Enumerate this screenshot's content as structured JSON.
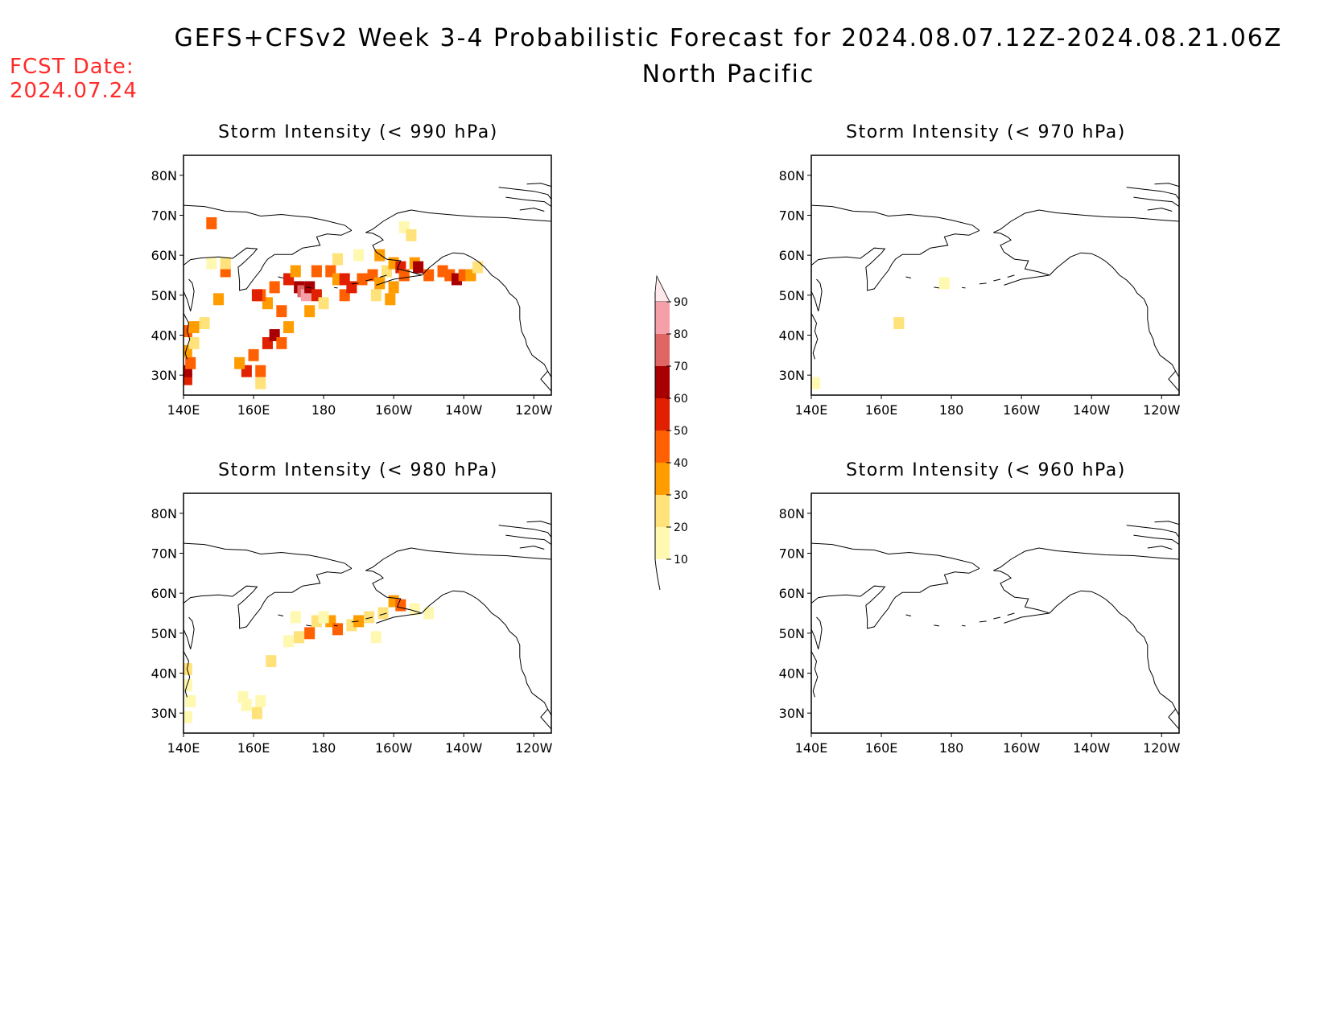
{
  "header": {
    "title": "GEFS+CFSv2 Week 3-4 Probabilistic Forecast for 2024.08.07.12Z-2024.08.21.06Z",
    "region": "North Pacific",
    "fcst_label": "FCST Date:",
    "fcst_date": "2024.07.24"
  },
  "axes": {
    "lat_labels": [
      "30N",
      "40N",
      "50N",
      "60N",
      "70N",
      "80N"
    ],
    "lon_labels": [
      "140E",
      "160E",
      "180",
      "160W",
      "140W",
      "120W"
    ]
  },
  "panels": [
    {
      "id": "p990",
      "title": "Storm Intensity (< 990 hPa)"
    },
    {
      "id": "p970",
      "title": "Storm Intensity (< 970 hPa)"
    },
    {
      "id": "p980",
      "title": "Storm Intensity (< 980 hPa)"
    },
    {
      "id": "p960",
      "title": "Storm Intensity (< 960 hPa)"
    }
  ],
  "colorbar": {
    "levels": [
      10,
      20,
      30,
      40,
      50,
      60,
      70,
      80,
      90
    ],
    "colors": [
      "#fff8b0",
      "#ffe27a",
      "#ff9c00",
      "#ff6000",
      "#e02000",
      "#a80000",
      "#e06666",
      "#f5a0a8",
      "#ffe8ec"
    ]
  },
  "chart_data": {
    "type": "heatmap",
    "units": "probability (%)",
    "lon_range": [
      140,
      245
    ],
    "lat_range": [
      25,
      85
    ],
    "panels": [
      {
        "title": "Storm Intensity (< 990 hPa)",
        "cells": [
          [
            141,
            29,
            50
          ],
          [
            141,
            31,
            60
          ],
          [
            142,
            33,
            40
          ],
          [
            141,
            36,
            30
          ],
          [
            143,
            38,
            20
          ],
          [
            141,
            41,
            40
          ],
          [
            143,
            42,
            30
          ],
          [
            146,
            43,
            20
          ],
          [
            150,
            49,
            30
          ],
          [
            152,
            56,
            40
          ],
          [
            152,
            58,
            20
          ],
          [
            148,
            58,
            10
          ],
          [
            158,
            31,
            50
          ],
          [
            162,
            31,
            40
          ],
          [
            162,
            28,
            20
          ],
          [
            156,
            33,
            30
          ],
          [
            160,
            35,
            40
          ],
          [
            164,
            38,
            50
          ],
          [
            166,
            40,
            60
          ],
          [
            168,
            38,
            40
          ],
          [
            170,
            42,
            30
          ],
          [
            168,
            46,
            40
          ],
          [
            164,
            48,
            30
          ],
          [
            162,
            50,
            40
          ],
          [
            161,
            50,
            50
          ],
          [
            166,
            52,
            40
          ],
          [
            170,
            54,
            50
          ],
          [
            173,
            52,
            60
          ],
          [
            174,
            51,
            70
          ],
          [
            175,
            50,
            80
          ],
          [
            176,
            52,
            60
          ],
          [
            178,
            50,
            50
          ],
          [
            172,
            56,
            30
          ],
          [
            178,
            56,
            40
          ],
          [
            182,
            56,
            40
          ],
          [
            184,
            54,
            30
          ],
          [
            186,
            54,
            50
          ],
          [
            186,
            50,
            40
          ],
          [
            188,
            52,
            50
          ],
          [
            191,
            54,
            40
          ],
          [
            194,
            55,
            40
          ],
          [
            196,
            53,
            30
          ],
          [
            198,
            56,
            20
          ],
          [
            200,
            58,
            30
          ],
          [
            202,
            57,
            50
          ],
          [
            203,
            55,
            40
          ],
          [
            200,
            52,
            30
          ],
          [
            206,
            58,
            30
          ],
          [
            207,
            57,
            60
          ],
          [
            210,
            55,
            40
          ],
          [
            214,
            56,
            40
          ],
          [
            216,
            55,
            40
          ],
          [
            218,
            54,
            60
          ],
          [
            220,
            55,
            40
          ],
          [
            222,
            55,
            30
          ],
          [
            224,
            57,
            20
          ],
          [
            180,
            48,
            20
          ],
          [
            176,
            46,
            30
          ],
          [
            195,
            50,
            20
          ],
          [
            199,
            49,
            30
          ],
          [
            148,
            68,
            40
          ],
          [
            203,
            67,
            10
          ],
          [
            205,
            65,
            20
          ],
          [
            184,
            59,
            20
          ],
          [
            190,
            60,
            10
          ],
          [
            196,
            60,
            30
          ]
        ]
      },
      {
        "title": "Storm Intensity (< 970 hPa)",
        "cells": [
          [
            165,
            43,
            20
          ],
          [
            178,
            53,
            10
          ],
          [
            141,
            28,
            10
          ]
        ]
      },
      {
        "title": "Storm Intensity (< 980 hPa)",
        "cells": [
          [
            141,
            41,
            20
          ],
          [
            141,
            37,
            10
          ],
          [
            141,
            29,
            10
          ],
          [
            142,
            33,
            10
          ],
          [
            158,
            32,
            10
          ],
          [
            161,
            30,
            20
          ],
          [
            157,
            34,
            10
          ],
          [
            162,
            33,
            10
          ],
          [
            165,
            43,
            20
          ],
          [
            170,
            48,
            10
          ],
          [
            173,
            49,
            20
          ],
          [
            176,
            50,
            40
          ],
          [
            178,
            53,
            20
          ],
          [
            182,
            53,
            30
          ],
          [
            184,
            51,
            40
          ],
          [
            188,
            52,
            20
          ],
          [
            190,
            53,
            30
          ],
          [
            193,
            54,
            20
          ],
          [
            197,
            55,
            20
          ],
          [
            200,
            58,
            30
          ],
          [
            202,
            57,
            40
          ],
          [
            206,
            56,
            10
          ],
          [
            210,
            55,
            10
          ],
          [
            172,
            54,
            10
          ],
          [
            180,
            54,
            10
          ],
          [
            195,
            49,
            10
          ]
        ]
      },
      {
        "title": "Storm Intensity (< 960 hPa)",
        "cells": []
      }
    ]
  }
}
